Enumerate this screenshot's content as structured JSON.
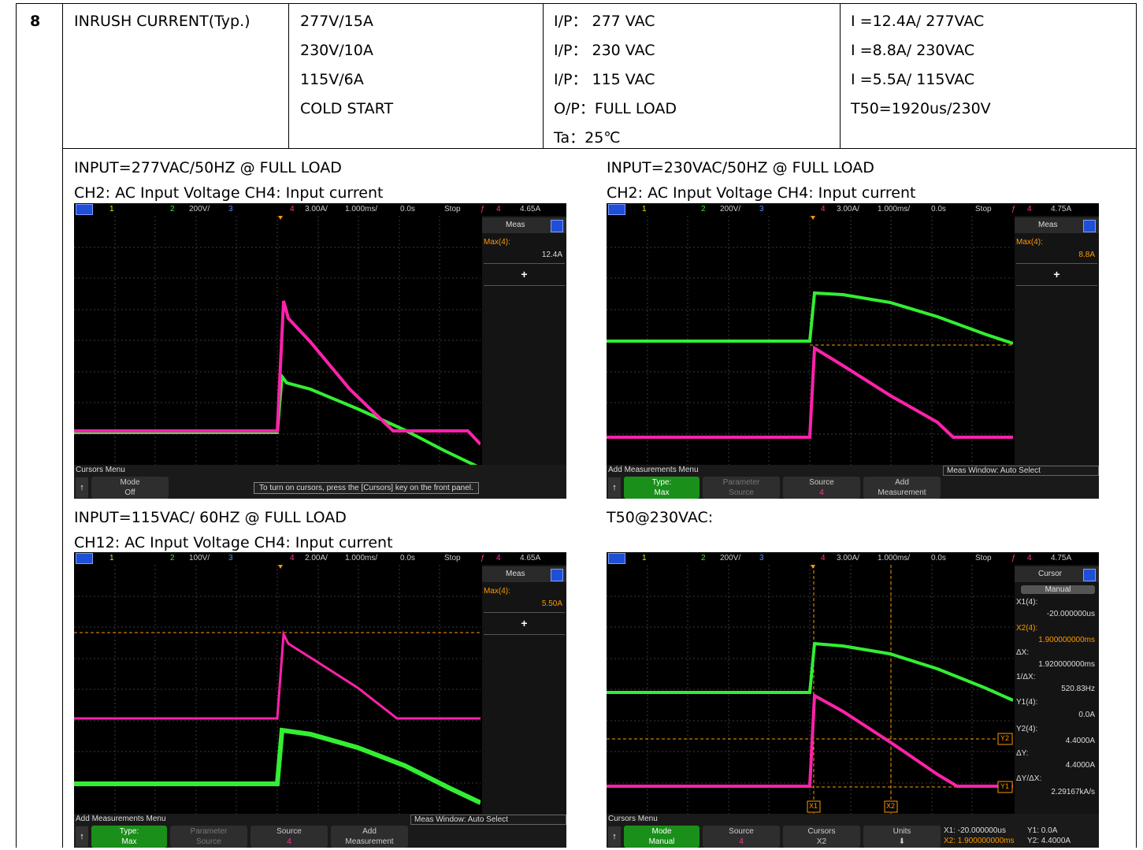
{
  "table": {
    "item_no": "8",
    "item_name": "INRUSH CURRENT(Typ.)",
    "ratings": [
      "277V/15A",
      "230V/10A",
      "115V/6A",
      "COLD START"
    ],
    "conditions": [
      "I/P：  277 VAC",
      "I/P：  230 VAC",
      "I/P：  115 VAC",
      "O/P：FULL LOAD",
      "Ta：25℃"
    ],
    "results": [
      "I =12.4A/ 277VAC",
      "I =8.8A/ 230VAC",
      "I =5.5A/ 115VAC",
      "T50=1920us/230V"
    ]
  },
  "captions": {
    "c1_line1": "INPUT=277VAC/50HZ @ FULL LOAD",
    "c1_line2": "CH2: AC Input Voltage CH4: Input current",
    "c2_line1": "INPUT=230VAC/50HZ @ FULL LOAD",
    "c2_line2": "CH2: AC Input Voltage CH4: Input current",
    "c3_line1": "INPUT=115VAC/ 60HZ @ FULL LOAD",
    "c3_line2": "CH12: AC Input Voltage CH4: Input current",
    "c4_line1": "T50@230VAC:"
  },
  "scope1": {
    "ch1": "1",
    "ch2": "2",
    "ch2_scale": "200V/",
    "ch3": "3",
    "ch4": "4",
    "ch4_scale": "3.00A/",
    "timebase": "1.000ms/",
    "delay": "0.0s",
    "run_state": "Stop",
    "trig_ch": "4",
    "trig_level": "4.65A",
    "panel_title": "Meas",
    "meas_label": "Max(4):",
    "meas_value": "12.4A",
    "add": "+",
    "menu_title": "Cursors Menu",
    "key1_label": "Mode",
    "key1_value": "Off",
    "message": "To turn on cursors, press the [Cursors] key on the front panel."
  },
  "scope2": {
    "ch1": "1",
    "ch2": "2",
    "ch2_scale": "200V/",
    "ch3": "3",
    "ch4": "4",
    "ch4_scale": "3.00A/",
    "timebase": "1.000ms/",
    "delay": "0.0s",
    "run_state": "Stop",
    "trig_ch": "4",
    "trig_level": "4.75A",
    "panel_title": "Meas",
    "meas_label": "Max(4):",
    "meas_value": "8.8A",
    "add": "+",
    "menu_title": "Add Measurements Menu",
    "window_label": "Meas Window: Auto Select",
    "key1_label": "Type:",
    "key1_value": "Max",
    "key2_label": "Parameter",
    "key2_value": "Source",
    "key3_label": "Source",
    "key3_value": "4",
    "key4_label": "Add",
    "key4_value": "Measurement"
  },
  "scope3": {
    "ch1": "1",
    "ch2": "2",
    "ch2_scale": "100V/",
    "ch3": "3",
    "ch4": "4",
    "ch4_scale": "2.00A/",
    "timebase": "1.000ms/",
    "delay": "0.0s",
    "run_state": "Stop",
    "trig_ch": "4",
    "trig_level": "4.65A",
    "panel_title": "Meas",
    "meas_label": "Max(4):",
    "meas_value": "5.50A",
    "add": "+",
    "menu_title": "Add Measurements Menu",
    "window_label": "Meas Window: Auto Select",
    "key1_label": "Type:",
    "key1_value": "Max",
    "key2_label": "Parameter",
    "key2_value": "Source",
    "key3_label": "Source",
    "key3_value": "4",
    "key4_label": "Add",
    "key4_value": "Measurement"
  },
  "scope4": {
    "ch1": "1",
    "ch2": "2",
    "ch2_scale": "200V/",
    "ch3": "3",
    "ch4": "4",
    "ch4_scale": "3.00A/",
    "timebase": "1.000ms/",
    "delay": "0.0s",
    "run_state": "Stop",
    "trig_ch": "4",
    "trig_level": "4.75A",
    "panel_title": "Cursor",
    "mode_btn": "Manual",
    "x1_label": "X1(4):",
    "x1_value": "-20.000000us",
    "x2_label": "X2(4):",
    "x2_value": "1.900000000ms",
    "dx_label": "ΔX:",
    "dx_value": "1.920000000ms",
    "inv_dx_label": "1/ΔX:",
    "inv_dx_value": "520.83Hz",
    "y1_label": "Y1(4):",
    "y1_value": "0.0A",
    "y2_label": "Y2(4):",
    "y2_value": "4.4000A",
    "dy_label": "ΔY:",
    "dy_value": "4.4000A",
    "dydx_label": "ΔY/ΔX:",
    "dydx_value": "2.29167kA/s",
    "marker_x1": "X1",
    "marker_x2": "X2",
    "marker_y1": "Y1",
    "marker_y2": "Y2",
    "menu_title": "Cursors Menu",
    "key1_label": "Mode",
    "key1_value": "Manual",
    "key2_label": "Source",
    "key2_value": "4",
    "key3_label": "Cursors",
    "key3_value": "X2",
    "key4_label": "Units",
    "readout_x1": "X1: -20.000000us",
    "readout_x2": "X2: 1.900000000ms",
    "readout_y1": "Y1: 0.0A",
    "readout_y2": "Y2: 4.4000A"
  }
}
